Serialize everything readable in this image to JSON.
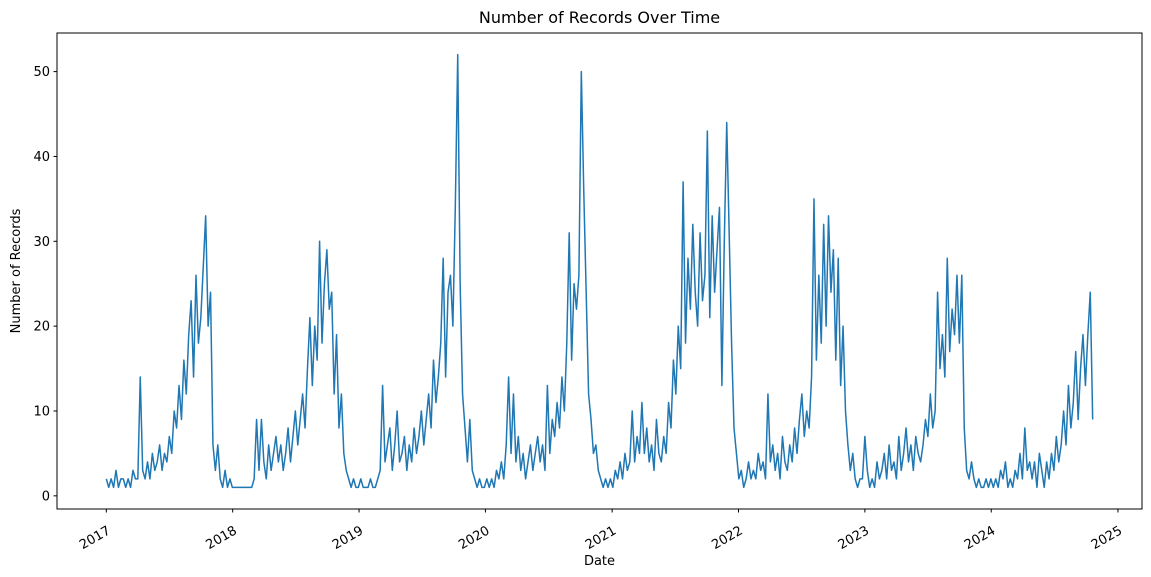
{
  "chart_data": {
    "type": "line",
    "title": "Number of Records Over Time",
    "xlabel": "Date",
    "ylabel": "Number of Records",
    "x_tick_labels": [
      "2017",
      "2018",
      "2019",
      "2020",
      "2021",
      "2022",
      "2023",
      "2024",
      "2025"
    ],
    "y_ticks": [
      0,
      10,
      20,
      30,
      40,
      50
    ],
    "ylim": [
      -1.55,
      54.55
    ],
    "x_margin_frac": 0.05,
    "legend": "none",
    "grid": false,
    "line_color": "#1f77b4",
    "background_color": "#ffffff",
    "series": [
      {
        "name": "Number of Records",
        "start_date": "2017-01-01",
        "step_days": 7,
        "values": [
          2,
          1,
          2,
          1,
          3,
          1,
          2,
          2,
          1,
          2,
          1,
          3,
          2,
          2,
          14,
          3,
          2,
          4,
          2,
          5,
          3,
          4,
          6,
          3,
          5,
          4,
          7,
          5,
          10,
          8,
          13,
          9,
          16,
          12,
          19,
          23,
          14,
          26,
          18,
          21,
          27,
          33,
          20,
          24,
          6,
          3,
          6,
          2,
          1,
          3,
          1,
          2,
          1,
          1,
          1,
          1,
          1,
          1,
          1,
          1,
          1,
          2,
          9,
          3,
          9,
          4,
          2,
          6,
          3,
          5,
          7,
          4,
          6,
          3,
          5,
          8,
          4,
          7,
          10,
          6,
          9,
          12,
          8,
          15,
          21,
          13,
          20,
          16,
          30,
          18,
          25,
          29,
          22,
          24,
          12,
          19,
          8,
          12,
          5,
          3,
          2,
          1,
          2,
          1,
          1,
          2,
          1,
          1,
          1,
          2,
          1,
          1,
          2,
          3,
          13,
          4,
          6,
          8,
          3,
          6,
          10,
          4,
          5,
          7,
          3,
          6,
          4,
          8,
          5,
          7,
          10,
          6,
          9,
          12,
          8,
          16,
          11,
          14,
          18,
          28,
          14,
          24,
          26,
          20,
          34,
          52,
          25,
          12,
          8,
          4,
          9,
          3,
          2,
          1,
          2,
          1,
          1,
          2,
          1,
          2,
          1,
          3,
          2,
          4,
          2,
          6,
          14,
          5,
          12,
          4,
          7,
          3,
          5,
          2,
          4,
          6,
          3,
          5,
          7,
          4,
          6,
          3,
          13,
          5,
          9,
          7,
          11,
          8,
          14,
          10,
          18,
          31,
          16,
          25,
          22,
          26,
          50,
          36,
          24,
          12,
          9,
          5,
          6,
          3,
          2,
          1,
          2,
          1,
          2,
          1,
          3,
          2,
          4,
          2,
          5,
          3,
          4,
          10,
          4,
          7,
          5,
          11,
          5,
          8,
          4,
          6,
          3,
          9,
          5,
          4,
          7,
          5,
          11,
          8,
          16,
          12,
          20,
          15,
          37,
          18,
          28,
          22,
          32,
          24,
          20,
          31,
          23,
          26,
          43,
          21,
          33,
          24,
          29,
          34,
          13,
          30,
          44,
          31,
          18,
          8,
          5,
          2,
          3,
          1,
          2,
          4,
          2,
          3,
          2,
          5,
          3,
          4,
          2,
          12,
          4,
          6,
          3,
          5,
          2,
          7,
          4,
          3,
          6,
          4,
          8,
          5,
          9,
          12,
          7,
          10,
          8,
          14,
          35,
          16,
          26,
          18,
          32,
          20,
          33,
          24,
          29,
          16,
          28,
          13,
          20,
          10,
          6,
          3,
          5,
          2,
          1,
          2,
          2,
          7,
          3,
          1,
          2,
          1,
          4,
          2,
          3,
          5,
          2,
          6,
          3,
          4,
          2,
          7,
          3,
          5,
          8,
          4,
          6,
          3,
          7,
          5,
          4,
          6,
          9,
          7,
          12,
          8,
          10,
          24,
          15,
          19,
          14,
          28,
          17,
          22,
          19,
          26,
          18,
          26,
          8,
          3,
          2,
          4,
          2,
          1,
          2,
          1,
          1,
          2,
          1,
          2,
          1,
          2,
          1,
          3,
          2,
          4,
          1,
          2,
          1,
          3,
          2,
          5,
          2,
          8,
          3,
          4,
          2,
          4,
          1,
          5,
          3,
          1,
          4,
          2,
          5,
          3,
          7,
          4,
          6,
          10,
          6,
          13,
          8,
          11,
          17,
          9,
          15,
          19,
          13,
          19,
          24,
          9
        ]
      }
    ]
  }
}
